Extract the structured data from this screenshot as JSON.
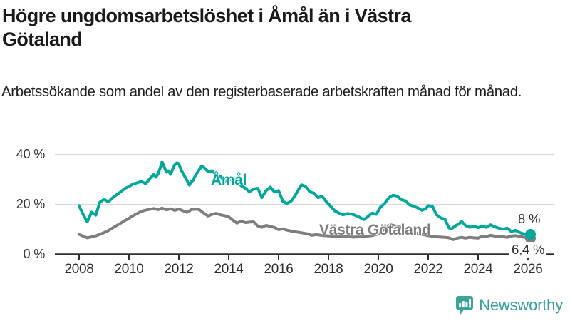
{
  "header": {
    "title": "Högre ungdomsarbetslöshet i Åmål än i Västra Götaland",
    "subtitle": "Arbetssökande som andel av den registerbaserade arbetskraften månad för månad."
  },
  "chart_data": {
    "type": "line",
    "title": "Högre ungdomsarbetslöshet i Åmål än i Västra Götaland",
    "xlabel": "",
    "ylabel": "",
    "x_axis": {
      "ticks": [
        2008,
        2010,
        2012,
        2014,
        2016,
        2018,
        2020,
        2022,
        2024,
        2026
      ],
      "range": [
        2007.0,
        2027.1
      ]
    },
    "y_axis": {
      "ticks": [
        {
          "value": 0,
          "label": "0 %"
        },
        {
          "value": 20,
          "label": "20 %"
        },
        {
          "value": 40,
          "label": "40 %"
        }
      ],
      "range": [
        0,
        42
      ]
    },
    "grid": "horizontal",
    "legend_position": "inline-labels",
    "series": [
      {
        "name": "Åmål",
        "color": "#00a79b",
        "end_label": "8 %",
        "end_value": 8,
        "points": [
          [
            2008.0,
            19.4
          ],
          [
            2008.17,
            15.8
          ],
          [
            2008.33,
            13.0
          ],
          [
            2008.5,
            16.9
          ],
          [
            2008.67,
            15.7
          ],
          [
            2008.83,
            20.8
          ],
          [
            2009.0,
            22.0
          ],
          [
            2009.17,
            21.0
          ],
          [
            2009.33,
            22.5
          ],
          [
            2009.5,
            23.8
          ],
          [
            2009.67,
            25.0
          ],
          [
            2009.83,
            26.3
          ],
          [
            2010.0,
            27.1
          ],
          [
            2010.17,
            28.2
          ],
          [
            2010.33,
            28.6
          ],
          [
            2010.5,
            29.2
          ],
          [
            2010.67,
            28.2
          ],
          [
            2010.83,
            30.2
          ],
          [
            2011.0,
            32.0
          ],
          [
            2011.08,
            30.9
          ],
          [
            2011.17,
            32.3
          ],
          [
            2011.25,
            34.5
          ],
          [
            2011.33,
            37.1
          ],
          [
            2011.42,
            34.8
          ],
          [
            2011.5,
            32.9
          ],
          [
            2011.58,
            33.4
          ],
          [
            2011.67,
            32.0
          ],
          [
            2011.75,
            34.0
          ],
          [
            2011.83,
            35.7
          ],
          [
            2011.92,
            36.6
          ],
          [
            2012.0,
            36.3
          ],
          [
            2012.08,
            34.0
          ],
          [
            2012.17,
            32.3
          ],
          [
            2012.33,
            29.5
          ],
          [
            2012.42,
            27.7
          ],
          [
            2012.5,
            29.0
          ],
          [
            2012.58,
            29.7
          ],
          [
            2012.67,
            31.7
          ],
          [
            2012.83,
            34.0
          ],
          [
            2012.92,
            35.4
          ],
          [
            2013.0,
            34.8
          ],
          [
            2013.17,
            33.1
          ],
          [
            2013.33,
            33.4
          ],
          [
            2013.5,
            32.0
          ],
          [
            2013.67,
            31.2
          ],
          [
            2013.83,
            29.2
          ],
          [
            2014.0,
            30.0
          ],
          [
            2014.17,
            29.8
          ],
          [
            2014.33,
            29.3
          ],
          [
            2014.5,
            27.4
          ],
          [
            2014.67,
            26.4
          ],
          [
            2014.83,
            25.0
          ],
          [
            2015.0,
            26.1
          ],
          [
            2015.17,
            26.4
          ],
          [
            2015.33,
            22.7
          ],
          [
            2015.5,
            25.5
          ],
          [
            2015.67,
            26.9
          ],
          [
            2015.83,
            25.0
          ],
          [
            2016.0,
            25.5
          ],
          [
            2016.17,
            21.2
          ],
          [
            2016.33,
            20.3
          ],
          [
            2016.5,
            21.2
          ],
          [
            2016.67,
            23.6
          ],
          [
            2016.83,
            26.4
          ],
          [
            2016.92,
            27.8
          ],
          [
            2017.08,
            27.2
          ],
          [
            2017.25,
            25.0
          ],
          [
            2017.42,
            24.5
          ],
          [
            2017.58,
            22.7
          ],
          [
            2017.75,
            23.2
          ],
          [
            2017.92,
            21.0
          ],
          [
            2018.08,
            19.3
          ],
          [
            2018.25,
            17.4
          ],
          [
            2018.42,
            16.5
          ],
          [
            2018.58,
            15.8
          ],
          [
            2018.75,
            16.3
          ],
          [
            2018.92,
            16.1
          ],
          [
            2019.08,
            15.6
          ],
          [
            2019.25,
            14.8
          ],
          [
            2019.42,
            13.9
          ],
          [
            2019.58,
            15.1
          ],
          [
            2019.75,
            16.5
          ],
          [
            2019.92,
            16.0
          ],
          [
            2020.08,
            18.9
          ],
          [
            2020.25,
            20.3
          ],
          [
            2020.42,
            22.7
          ],
          [
            2020.58,
            23.6
          ],
          [
            2020.75,
            23.3
          ],
          [
            2020.92,
            21.9
          ],
          [
            2021.08,
            21.4
          ],
          [
            2021.25,
            19.8
          ],
          [
            2021.42,
            19.2
          ],
          [
            2021.58,
            18.6
          ],
          [
            2021.75,
            17.6
          ],
          [
            2021.92,
            18.4
          ],
          [
            2022.0,
            19.5
          ],
          [
            2022.17,
            19.2
          ],
          [
            2022.33,
            15.9
          ],
          [
            2022.5,
            14.6
          ],
          [
            2022.67,
            14.0
          ],
          [
            2022.83,
            10.6
          ],
          [
            2022.92,
            10.1
          ],
          [
            2023.08,
            11.3
          ],
          [
            2023.25,
            12.3
          ],
          [
            2023.33,
            13.2
          ],
          [
            2023.5,
            11.5
          ],
          [
            2023.67,
            10.8
          ],
          [
            2023.83,
            11.3
          ],
          [
            2024.0,
            10.7
          ],
          [
            2024.17,
            11.3
          ],
          [
            2024.33,
            10.8
          ],
          [
            2024.5,
            11.8
          ],
          [
            2024.67,
            11.0
          ],
          [
            2024.83,
            10.5
          ],
          [
            2025.0,
            10.1
          ],
          [
            2025.17,
            10.5
          ],
          [
            2025.33,
            9.1
          ],
          [
            2025.5,
            9.6
          ],
          [
            2025.67,
            8.7
          ],
          [
            2025.83,
            8.2
          ],
          [
            2026.0,
            7.8
          ],
          [
            2026.1,
            8.0
          ]
        ]
      },
      {
        "name": "Västra Götaland",
        "color": "#7e7e7e",
        "end_label": "6,4 %",
        "end_value": 6.4,
        "points": [
          [
            2008.0,
            8.0
          ],
          [
            2008.17,
            7.2
          ],
          [
            2008.33,
            6.6
          ],
          [
            2008.5,
            7.0
          ],
          [
            2008.67,
            7.4
          ],
          [
            2008.83,
            8.0
          ],
          [
            2009.0,
            8.7
          ],
          [
            2009.17,
            9.5
          ],
          [
            2009.33,
            10.5
          ],
          [
            2009.5,
            11.5
          ],
          [
            2009.67,
            12.5
          ],
          [
            2009.83,
            13.5
          ],
          [
            2010.0,
            14.4
          ],
          [
            2010.17,
            15.5
          ],
          [
            2010.33,
            16.3
          ],
          [
            2010.5,
            17.2
          ],
          [
            2010.67,
            17.7
          ],
          [
            2010.83,
            18.0
          ],
          [
            2011.0,
            18.3
          ],
          [
            2011.17,
            17.9
          ],
          [
            2011.33,
            18.5
          ],
          [
            2011.5,
            17.8
          ],
          [
            2011.67,
            18.2
          ],
          [
            2011.83,
            17.6
          ],
          [
            2012.0,
            18.1
          ],
          [
            2012.17,
            17.4
          ],
          [
            2012.33,
            16.8
          ],
          [
            2012.5,
            17.9
          ],
          [
            2012.67,
            18.1
          ],
          [
            2012.83,
            17.8
          ],
          [
            2013.0,
            16.5
          ],
          [
            2013.17,
            15.3
          ],
          [
            2013.33,
            16.0
          ],
          [
            2013.5,
            16.4
          ],
          [
            2013.67,
            15.8
          ],
          [
            2013.83,
            15.5
          ],
          [
            2014.0,
            15.0
          ],
          [
            2014.17,
            13.6
          ],
          [
            2014.33,
            12.5
          ],
          [
            2014.5,
            13.3
          ],
          [
            2014.67,
            12.7
          ],
          [
            2014.83,
            12.9
          ],
          [
            2015.0,
            13.0
          ],
          [
            2015.17,
            11.3
          ],
          [
            2015.33,
            10.8
          ],
          [
            2015.5,
            11.6
          ],
          [
            2015.67,
            11.1
          ],
          [
            2015.83,
            10.8
          ],
          [
            2016.0,
            9.9
          ],
          [
            2016.17,
            10.2
          ],
          [
            2016.33,
            9.7
          ],
          [
            2016.5,
            9.3
          ],
          [
            2016.67,
            9.0
          ],
          [
            2016.83,
            8.8
          ],
          [
            2017.0,
            8.5
          ],
          [
            2017.17,
            8.2
          ],
          [
            2017.33,
            7.6
          ],
          [
            2017.5,
            7.9
          ],
          [
            2017.67,
            7.7
          ],
          [
            2017.83,
            7.5
          ],
          [
            2018.0,
            7.4
          ],
          [
            2018.25,
            7.2
          ],
          [
            2018.5,
            7.0
          ],
          [
            2018.75,
            7.1
          ],
          [
            2019.0,
            6.9
          ],
          [
            2019.25,
            7.0
          ],
          [
            2019.5,
            7.2
          ],
          [
            2019.75,
            7.5
          ],
          [
            2020.0,
            8.2
          ],
          [
            2020.17,
            9.5
          ],
          [
            2020.33,
            11.2
          ],
          [
            2020.5,
            11.8
          ],
          [
            2020.67,
            11.4
          ],
          [
            2020.83,
            11.0
          ],
          [
            2021.0,
            10.2
          ],
          [
            2021.25,
            9.4
          ],
          [
            2021.5,
            8.6
          ],
          [
            2021.75,
            8.0
          ],
          [
            2022.0,
            7.5
          ],
          [
            2022.17,
            7.2
          ],
          [
            2022.33,
            7.0
          ],
          [
            2022.5,
            6.9
          ],
          [
            2022.67,
            6.8
          ],
          [
            2022.83,
            6.6
          ],
          [
            2023.0,
            5.9
          ],
          [
            2023.17,
            6.5
          ],
          [
            2023.33,
            6.8
          ],
          [
            2023.5,
            6.5
          ],
          [
            2023.67,
            6.8
          ],
          [
            2023.83,
            6.6
          ],
          [
            2024.0,
            6.5
          ],
          [
            2024.17,
            7.3
          ],
          [
            2024.33,
            7.1
          ],
          [
            2024.5,
            7.6
          ],
          [
            2024.67,
            7.3
          ],
          [
            2024.83,
            7.1
          ],
          [
            2025.0,
            7.0
          ],
          [
            2025.17,
            6.8
          ],
          [
            2025.33,
            7.3
          ],
          [
            2025.5,
            7.5
          ],
          [
            2025.67,
            7.2
          ],
          [
            2025.83,
            6.9
          ],
          [
            2026.0,
            6.6
          ],
          [
            2026.1,
            6.4
          ]
        ]
      }
    ]
  },
  "colors": {
    "amal_line": "#00a79b",
    "vg_line": "#7e7e7e",
    "gridline": "#d9d9d9",
    "axis": "#2f2f2f",
    "brand_teal": "#33a098"
  },
  "branding": {
    "name": "Newsworthy",
    "color": "#33a098"
  }
}
